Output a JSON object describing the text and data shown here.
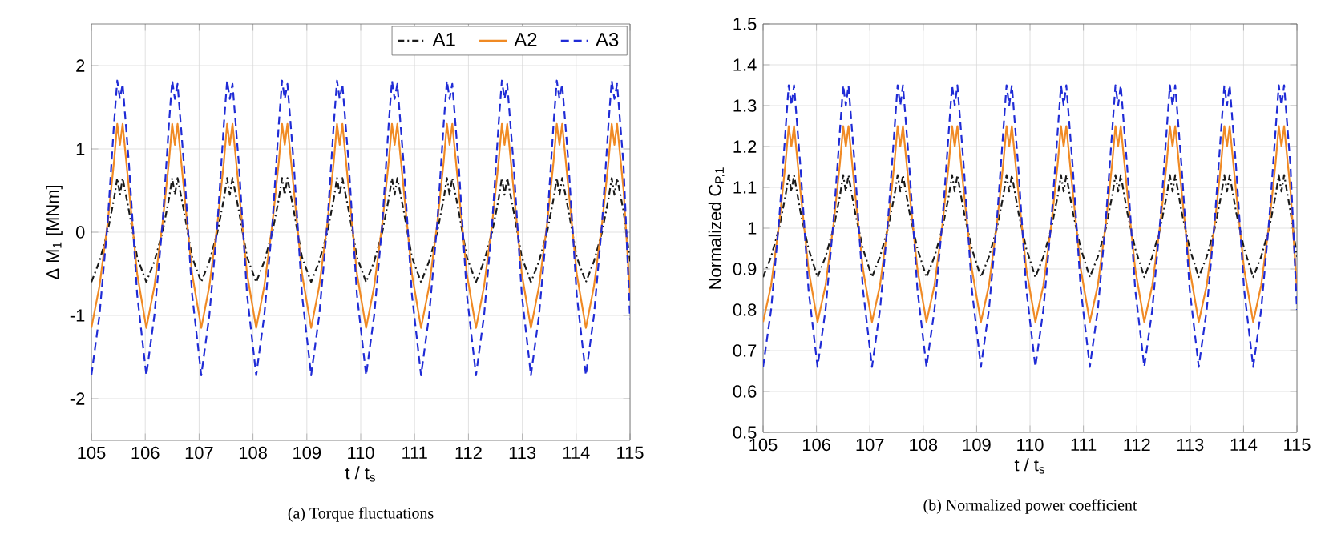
{
  "chart_data": [
    {
      "type": "line",
      "title": "(a) Torque fluctuations",
      "xlabel": "t / t$_{s}$",
      "ylabel": "Δ M$_{1}$ [MNm]",
      "x": [
        105,
        105.15,
        105.3,
        105.42,
        105.48,
        105.53,
        105.58,
        105.7,
        105.85,
        106.02,
        106.17,
        106.32,
        106.44,
        106.5,
        106.55,
        106.6,
        106.72,
        106.87,
        107.04,
        107.19,
        107.34,
        107.46,
        107.52,
        107.57,
        107.62,
        107.74,
        107.89,
        108.06,
        108.21,
        108.36,
        108.48,
        108.54,
        108.59,
        108.64,
        108.76,
        108.91,
        109.08,
        109.23,
        109.38,
        109.5,
        109.56,
        109.61,
        109.66,
        109.78,
        109.93,
        110.1,
        110.25,
        110.4,
        110.52,
        110.58,
        110.63,
        110.68,
        110.8,
        110.95,
        111.12,
        111.27,
        111.42,
        111.54,
        111.6,
        111.65,
        111.7,
        111.82,
        111.97,
        112.14,
        112.29,
        112.44,
        112.56,
        112.62,
        112.67,
        112.72,
        112.84,
        112.99,
        113.16,
        113.31,
        113.46,
        113.58,
        113.64,
        113.69,
        113.74,
        113.86,
        114.01,
        114.18,
        114.33,
        114.48,
        114.6,
        114.66,
        114.71,
        114.76,
        114.88,
        115
      ],
      "series": [
        {
          "name": "A1",
          "color": "#1a1a1a",
          "line_style": "dashdot",
          "values": [
            -0.6,
            -0.35,
            0.0,
            0.4,
            0.65,
            0.45,
            0.65,
            0.25,
            -0.3,
            -0.6,
            -0.35,
            0.0,
            0.4,
            0.65,
            0.45,
            0.65,
            0.25,
            -0.3,
            -0.6,
            -0.35,
            0.0,
            0.4,
            0.65,
            0.45,
            0.65,
            0.25,
            -0.3,
            -0.6,
            -0.35,
            0.0,
            0.4,
            0.65,
            0.45,
            0.65,
            0.25,
            -0.3,
            -0.6,
            -0.35,
            0.0,
            0.4,
            0.65,
            0.45,
            0.65,
            0.25,
            -0.3,
            -0.6,
            -0.35,
            0.0,
            0.4,
            0.65,
            0.45,
            0.65,
            0.25,
            -0.3,
            -0.6,
            -0.35,
            0.0,
            0.4,
            0.65,
            0.45,
            0.65,
            0.25,
            -0.3,
            -0.6,
            -0.35,
            0.0,
            0.4,
            0.65,
            0.45,
            0.65,
            0.25,
            -0.3,
            -0.6,
            -0.35,
            0.0,
            0.4,
            0.65,
            0.45,
            0.65,
            0.25,
            -0.3,
            -0.6,
            -0.35,
            0.0,
            0.4,
            0.65,
            0.45,
            0.65,
            0.25,
            -0.35
          ]
        },
        {
          "name": "A2",
          "color": "#f08a24",
          "line_style": "solid",
          "values": [
            -1.15,
            -0.65,
            0.1,
            0.85,
            1.3,
            1.05,
            1.3,
            0.5,
            -0.5,
            -1.15,
            -0.65,
            0.1,
            0.85,
            1.3,
            1.05,
            1.3,
            0.5,
            -0.5,
            -1.15,
            -0.65,
            0.1,
            0.85,
            1.3,
            1.05,
            1.3,
            0.5,
            -0.5,
            -1.15,
            -0.65,
            0.1,
            0.85,
            1.3,
            1.05,
            1.3,
            0.5,
            -0.5,
            -1.15,
            -0.65,
            0.1,
            0.85,
            1.3,
            1.05,
            1.3,
            0.5,
            -0.5,
            -1.15,
            -0.65,
            0.1,
            0.85,
            1.3,
            1.05,
            1.3,
            0.5,
            -0.5,
            -1.15,
            -0.65,
            0.1,
            0.85,
            1.3,
            1.05,
            1.3,
            0.5,
            -0.5,
            -1.15,
            -0.65,
            0.1,
            0.85,
            1.3,
            1.05,
            1.3,
            0.5,
            -0.5,
            -1.15,
            -0.65,
            0.1,
            0.85,
            1.3,
            1.05,
            1.3,
            0.5,
            -0.5,
            -1.15,
            -0.65,
            0.1,
            0.85,
            1.3,
            1.05,
            1.3,
            0.5,
            -0.75
          ]
        },
        {
          "name": "A3",
          "color": "#1f2bd6",
          "line_style": "dashed",
          "values": [
            -1.72,
            -1.0,
            0.1,
            1.3,
            1.82,
            1.6,
            1.78,
            0.8,
            -0.75,
            -1.72,
            -1.0,
            0.1,
            1.3,
            1.82,
            1.6,
            1.78,
            0.8,
            -0.75,
            -1.72,
            -1.0,
            0.1,
            1.3,
            1.82,
            1.6,
            1.78,
            0.8,
            -0.75,
            -1.72,
            -1.0,
            0.1,
            1.3,
            1.82,
            1.6,
            1.78,
            0.8,
            -0.75,
            -1.72,
            -1.0,
            0.1,
            1.3,
            1.82,
            1.6,
            1.78,
            0.8,
            -0.75,
            -1.72,
            -1.0,
            0.1,
            1.3,
            1.82,
            1.6,
            1.78,
            0.8,
            -0.75,
            -1.72,
            -1.0,
            0.1,
            1.3,
            1.82,
            1.6,
            1.78,
            0.8,
            -0.75,
            -1.72,
            -1.0,
            0.1,
            1.3,
            1.82,
            1.6,
            1.78,
            0.8,
            -0.75,
            -1.72,
            -1.0,
            0.1,
            1.3,
            1.82,
            1.6,
            1.78,
            0.8,
            -0.75,
            -1.72,
            -1.0,
            0.1,
            1.3,
            1.82,
            1.6,
            1.78,
            0.8,
            -1.05
          ]
        }
      ],
      "xlim": [
        105,
        115
      ],
      "xticks": [
        105,
        106,
        107,
        108,
        109,
        110,
        111,
        112,
        113,
        114,
        115
      ],
      "ylim": [
        -2.5,
        2.5
      ],
      "yticks": [
        -2,
        -1,
        0,
        1,
        2
      ],
      "grid": true,
      "legend": "top right"
    },
    {
      "type": "line",
      "title": "(b) Normalized power coefficient",
      "xlabel": "t / t$_{s}$",
      "ylabel": "Normalized C$_{P,1}$",
      "x": [
        105,
        105.15,
        105.3,
        105.42,
        105.48,
        105.53,
        105.58,
        105.7,
        105.85,
        106.02,
        106.17,
        106.32,
        106.44,
        106.5,
        106.55,
        106.6,
        106.72,
        106.87,
        107.04,
        107.19,
        107.34,
        107.46,
        107.52,
        107.57,
        107.62,
        107.74,
        107.89,
        108.06,
        108.21,
        108.36,
        108.48,
        108.54,
        108.59,
        108.64,
        108.76,
        108.91,
        109.08,
        109.23,
        109.38,
        109.5,
        109.56,
        109.61,
        109.66,
        109.78,
        109.93,
        110.1,
        110.25,
        110.4,
        110.52,
        110.58,
        110.63,
        110.68,
        110.8,
        110.95,
        111.12,
        111.27,
        111.42,
        111.54,
        111.6,
        111.65,
        111.7,
        111.82,
        111.97,
        112.14,
        112.29,
        112.44,
        112.56,
        112.62,
        112.67,
        112.72,
        112.84,
        112.99,
        113.16,
        113.31,
        113.46,
        113.58,
        113.64,
        113.69,
        113.74,
        113.86,
        114.01,
        114.18,
        114.33,
        114.48,
        114.6,
        114.66,
        114.71,
        114.76,
        114.88,
        115
      ],
      "series": [
        {
          "color": "#1a1a1a",
          "line_style": "dashdot",
          "values": [
            0.88,
            0.93,
            1.0,
            1.08,
            1.13,
            1.09,
            1.13,
            1.04,
            0.95,
            0.88,
            0.93,
            1.0,
            1.08,
            1.13,
            1.09,
            1.13,
            1.04,
            0.95,
            0.88,
            0.93,
            1.0,
            1.08,
            1.13,
            1.09,
            1.13,
            1.04,
            0.95,
            0.88,
            0.93,
            1.0,
            1.08,
            1.13,
            1.09,
            1.13,
            1.04,
            0.95,
            0.88,
            0.93,
            1.0,
            1.08,
            1.13,
            1.09,
            1.13,
            1.04,
            0.95,
            0.88,
            0.93,
            1.0,
            1.08,
            1.13,
            1.09,
            1.13,
            1.04,
            0.95,
            0.88,
            0.93,
            1.0,
            1.08,
            1.13,
            1.09,
            1.13,
            1.04,
            0.95,
            0.88,
            0.93,
            1.0,
            1.08,
            1.13,
            1.09,
            1.13,
            1.04,
            0.95,
            0.88,
            0.93,
            1.0,
            1.08,
            1.13,
            1.09,
            1.13,
            1.04,
            0.95,
            0.88,
            0.93,
            1.0,
            1.08,
            1.13,
            1.09,
            1.13,
            1.04,
            0.93
          ]
        },
        {
          "color": "#f08a24",
          "line_style": "solid",
          "values": [
            0.77,
            0.86,
            1.01,
            1.16,
            1.25,
            1.2,
            1.25,
            1.09,
            0.9,
            0.77,
            0.86,
            1.01,
            1.16,
            1.25,
            1.2,
            1.25,
            1.09,
            0.9,
            0.77,
            0.86,
            1.01,
            1.16,
            1.25,
            1.2,
            1.25,
            1.09,
            0.9,
            0.77,
            0.86,
            1.01,
            1.16,
            1.25,
            1.2,
            1.25,
            1.09,
            0.9,
            0.77,
            0.86,
            1.01,
            1.16,
            1.25,
            1.2,
            1.25,
            1.09,
            0.9,
            0.77,
            0.86,
            1.01,
            1.16,
            1.25,
            1.2,
            1.25,
            1.09,
            0.9,
            0.77,
            0.86,
            1.01,
            1.16,
            1.25,
            1.2,
            1.25,
            1.09,
            0.9,
            0.77,
            0.86,
            1.01,
            1.16,
            1.25,
            1.2,
            1.25,
            1.09,
            0.9,
            0.77,
            0.86,
            1.01,
            1.16,
            1.25,
            1.2,
            1.25,
            1.09,
            0.9,
            0.77,
            0.86,
            1.01,
            1.16,
            1.25,
            1.2,
            1.25,
            1.09,
            0.85
          ]
        },
        {
          "color": "#1f2bd6",
          "line_style": "dashed",
          "values": [
            0.66,
            0.8,
            1.02,
            1.24,
            1.35,
            1.3,
            1.35,
            1.15,
            0.85,
            0.66,
            0.8,
            1.02,
            1.24,
            1.35,
            1.3,
            1.35,
            1.15,
            0.85,
            0.66,
            0.8,
            1.02,
            1.24,
            1.35,
            1.3,
            1.35,
            1.15,
            0.85,
            0.66,
            0.8,
            1.02,
            1.24,
            1.35,
            1.3,
            1.35,
            1.15,
            0.85,
            0.66,
            0.8,
            1.02,
            1.24,
            1.35,
            1.3,
            1.35,
            1.15,
            0.85,
            0.66,
            0.8,
            1.02,
            1.24,
            1.35,
            1.3,
            1.35,
            1.15,
            0.85,
            0.66,
            0.8,
            1.02,
            1.24,
            1.35,
            1.3,
            1.35,
            1.15,
            0.85,
            0.66,
            0.8,
            1.02,
            1.24,
            1.35,
            1.3,
            1.35,
            1.15,
            0.85,
            0.66,
            0.8,
            1.02,
            1.24,
            1.35,
            1.3,
            1.35,
            1.15,
            0.85,
            0.66,
            0.8,
            1.02,
            1.24,
            1.35,
            1.3,
            1.35,
            1.15,
            0.8
          ]
        }
      ],
      "xlim": [
        105,
        115
      ],
      "xticks": [
        105,
        106,
        107,
        108,
        109,
        110,
        111,
        112,
        113,
        114,
        115
      ],
      "ylim": [
        0.5,
        1.5
      ],
      "yticks": [
        0.5,
        0.6,
        0.7,
        0.8,
        0.9,
        1,
        1.1,
        1.2,
        1.3,
        1.4,
        1.5
      ],
      "grid": true
    }
  ]
}
